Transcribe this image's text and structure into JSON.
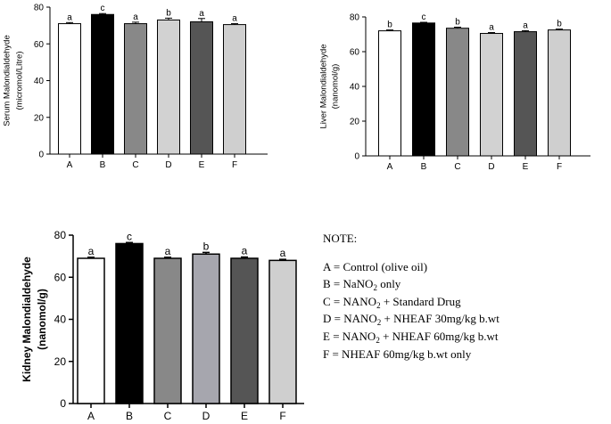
{
  "chart_data": [
    {
      "type": "bar",
      "ylabel": [
        "Serum Malondialdehyde",
        "(micromol/Litre)"
      ],
      "categories": [
        "A",
        "B",
        "C",
        "D",
        "E",
        "F"
      ],
      "values": [
        71,
        76,
        71,
        73,
        72,
        70.5
      ],
      "errors": [
        0.6,
        0.5,
        0.8,
        1.0,
        1.8,
        0.5
      ],
      "letters": [
        "a",
        "c",
        "a",
        "b",
        "a",
        "a"
      ],
      "ylim": [
        0,
        80
      ],
      "yticks": [
        "0",
        "20",
        "40",
        "60",
        "80"
      ],
      "fills": [
        "#ffffff",
        "#000000",
        "#888888",
        "#d2d2d2",
        "#555555",
        "#cfcfcf"
      ]
    },
    {
      "type": "bar",
      "ylabel": [
        "Liver Malondialdehyde",
        "(nanomol/g)"
      ],
      "categories": [
        "A",
        "B",
        "C",
        "D",
        "E",
        "F"
      ],
      "values": [
        72,
        76.5,
        73.5,
        70.5,
        71.5,
        72.5
      ],
      "errors": [
        0.5,
        0.4,
        0.6,
        0.5,
        0.6,
        0.5
      ],
      "letters": [
        "b",
        "c",
        "b",
        "a",
        "a",
        "b"
      ],
      "ylim": [
        0,
        80
      ],
      "yticks": [
        "0",
        "20",
        "40",
        "60",
        "80"
      ],
      "fills": [
        "#ffffff",
        "#000000",
        "#888888",
        "#d2d2d2",
        "#555555",
        "#cfcfcf"
      ]
    },
    {
      "type": "bar",
      "ylabel": [
        "Kidney Malondialdehyde",
        "(nanomol/g)"
      ],
      "categories": [
        "A",
        "B",
        "C",
        "D",
        "E",
        "F"
      ],
      "values": [
        69,
        76,
        69,
        71,
        69,
        68
      ],
      "errors": [
        0.5,
        0.5,
        0.5,
        0.8,
        0.6,
        0.5
      ],
      "letters": [
        "a",
        "c",
        "a",
        "b",
        "a",
        "a"
      ],
      "ylim": [
        0,
        80
      ],
      "yticks": [
        "0",
        "20",
        "40",
        "60",
        "80"
      ],
      "fills": [
        "#ffffff",
        "#000000",
        "#888888",
        "#a6a6ae",
        "#555555",
        "#cfcfcf"
      ]
    }
  ],
  "note": {
    "title": "NOTE:",
    "a": "A = Control (olive oil)",
    "b_pre": "B = NaNO",
    "b_sub": "2",
    "b_post": " only",
    "c_pre": "C = NANO",
    "c_sub": "2",
    "c_post": " + Standard Drug",
    "d_pre": "D = NANO",
    "d_sub": "2",
    "d_post": " + NHEAF 30mg/kg b.wt",
    "e_pre": "E = NANO",
    "e_sub": "2",
    "e_post": " + NHEAF 60mg/kg b.wt",
    "f": "F = NHEAF 60mg/kg b.wt only"
  }
}
